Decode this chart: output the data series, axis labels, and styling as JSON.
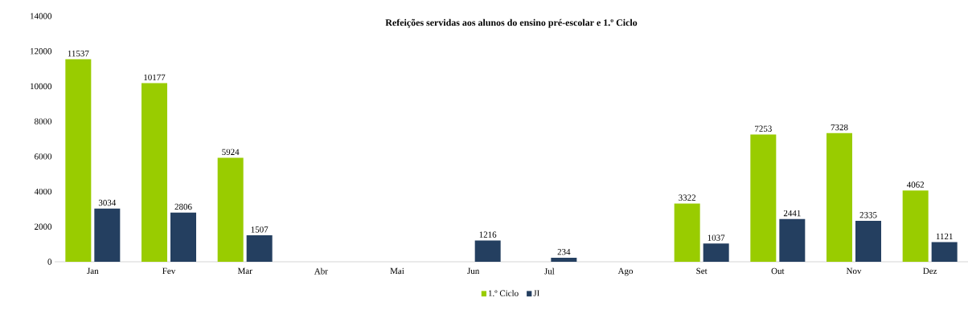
{
  "chart_data": {
    "type": "bar",
    "title": "Refeições servidas aos alunos do ensino pré-escolar e 1.º Ciclo",
    "categories": [
      "Jan",
      "Fev",
      "Mar",
      "Abr",
      "Mai",
      "Jun",
      "Jul",
      "Ago",
      "Set",
      "Out",
      "Nov",
      "Dez"
    ],
    "series": [
      {
        "name": "1.º Ciclo",
        "color": "#99cc00",
        "values": [
          11537,
          10177,
          5924,
          null,
          null,
          null,
          null,
          null,
          3322,
          7253,
          7328,
          4062
        ]
      },
      {
        "name": "JI",
        "color": "#243f60",
        "values": [
          3034,
          2806,
          1507,
          null,
          null,
          1216,
          234,
          null,
          1037,
          2441,
          2335,
          1121
        ]
      }
    ],
    "ylim": [
      0,
      14000
    ],
    "yticks": [
      0,
      2000,
      4000,
      6000,
      8000,
      10000,
      12000,
      14000
    ],
    "grid": false,
    "legend": "bottom",
    "data_labels": true
  }
}
